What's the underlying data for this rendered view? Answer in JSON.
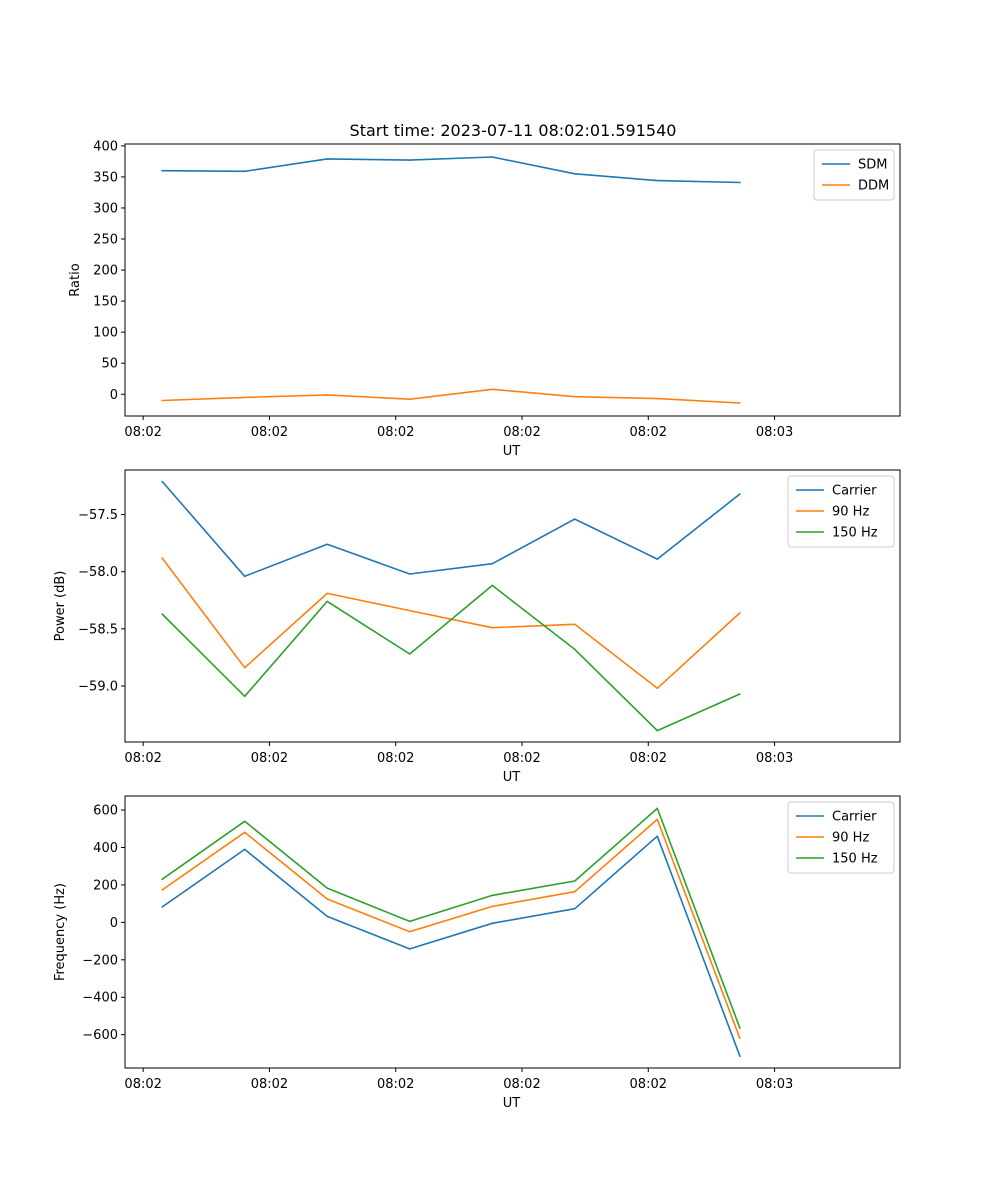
{
  "figure": {
    "title": "Start time: 2023-07-11 08:02:01.591540"
  },
  "chart_data": [
    {
      "type": "line",
      "title": "Start time: 2023-07-11 08:02:01.591540",
      "xlabel": "UT",
      "ylabel": "Ratio",
      "x": [
        1,
        2,
        3,
        4,
        5,
        6,
        7,
        8
      ],
      "xticks": [
        {
          "at": 0.77,
          "label": "08:02"
        },
        {
          "at": 2.3,
          "label": "08:02"
        },
        {
          "at": 3.83,
          "label": "08:02"
        },
        {
          "at": 5.36,
          "label": "08:02"
        },
        {
          "at": 6.89,
          "label": "08:02"
        },
        {
          "at": 8.42,
          "label": "08:03"
        }
      ],
      "xlim": [
        0.55,
        9.94
      ],
      "ylim": [
        -35,
        403
      ],
      "yticks": [
        0,
        50,
        100,
        150,
        200,
        250,
        300,
        350,
        400
      ],
      "legend_loc": "upper right",
      "series": [
        {
          "name": "SDM",
          "color": "#1f77b4",
          "values": [
            360,
            359,
            379,
            377,
            382,
            355,
            344,
            341
          ]
        },
        {
          "name": "DDM",
          "color": "#ff7f0e",
          "values": [
            -10,
            -5,
            -1,
            -8,
            8,
            -4,
            -7,
            -14
          ]
        }
      ]
    },
    {
      "type": "line",
      "xlabel": "UT",
      "ylabel": "Power (dB)",
      "x": [
        1,
        2,
        3,
        4,
        5,
        6,
        7,
        8
      ],
      "xticks": [
        {
          "at": 0.77,
          "label": "08:02"
        },
        {
          "at": 2.3,
          "label": "08:02"
        },
        {
          "at": 3.83,
          "label": "08:02"
        },
        {
          "at": 5.36,
          "label": "08:02"
        },
        {
          "at": 6.89,
          "label": "08:02"
        },
        {
          "at": 8.42,
          "label": "08:03"
        }
      ],
      "xlim": [
        0.55,
        9.94
      ],
      "ylim": [
        -59.49,
        -57.11
      ],
      "yticks": [
        -59.0,
        -58.5,
        -58.0,
        -57.5
      ],
      "ytick_labels": [
        "−59.0",
        "−58.5",
        "−58.0",
        "−57.5"
      ],
      "legend_loc": "upper right",
      "series": [
        {
          "name": "Carrier",
          "color": "#1f77b4",
          "values": [
            -57.21,
            -58.04,
            -57.76,
            -58.02,
            -57.93,
            -57.54,
            -57.89,
            -57.32
          ]
        },
        {
          "name": "90 Hz",
          "color": "#ff7f0e",
          "values": [
            -57.88,
            -58.84,
            -58.19,
            -58.34,
            -58.49,
            -58.46,
            -59.02,
            -58.36
          ]
        },
        {
          "name": "150 Hz",
          "color": "#2ca02c",
          "values": [
            -58.37,
            -59.09,
            -58.26,
            -58.72,
            -58.12,
            -58.68,
            -59.39,
            -59.07
          ]
        }
      ]
    },
    {
      "type": "line",
      "xlabel": "UT",
      "ylabel": "Frequency (Hz)",
      "x": [
        1,
        2,
        3,
        4,
        5,
        6,
        7,
        8
      ],
      "xticks": [
        {
          "at": 0.77,
          "label": "08:02"
        },
        {
          "at": 2.3,
          "label": "08:02"
        },
        {
          "at": 3.83,
          "label": "08:02"
        },
        {
          "at": 5.36,
          "label": "08:02"
        },
        {
          "at": 6.89,
          "label": "08:02"
        },
        {
          "at": 8.42,
          "label": "08:03"
        }
      ],
      "xlim": [
        0.55,
        9.94
      ],
      "ylim": [
        -778,
        675
      ],
      "yticks": [
        -600,
        -400,
        -200,
        0,
        200,
        400,
        600
      ],
      "ytick_labels": [
        "−600",
        "−400",
        "−200",
        "0",
        "200",
        "400",
        "600"
      ],
      "legend_loc": "upper right",
      "series": [
        {
          "name": "Carrier",
          "color": "#1f77b4",
          "values": [
            82,
            390,
            32,
            -142,
            -5,
            73,
            460,
            -715
          ]
        },
        {
          "name": "90 Hz",
          "color": "#ff7f0e",
          "values": [
            173,
            481,
            125,
            -50,
            85,
            164,
            550,
            -620
          ]
        },
        {
          "name": "150 Hz",
          "color": "#2ca02c",
          "values": [
            230,
            540,
            183,
            5,
            144,
            221,
            609,
            -565
          ]
        }
      ]
    }
  ]
}
